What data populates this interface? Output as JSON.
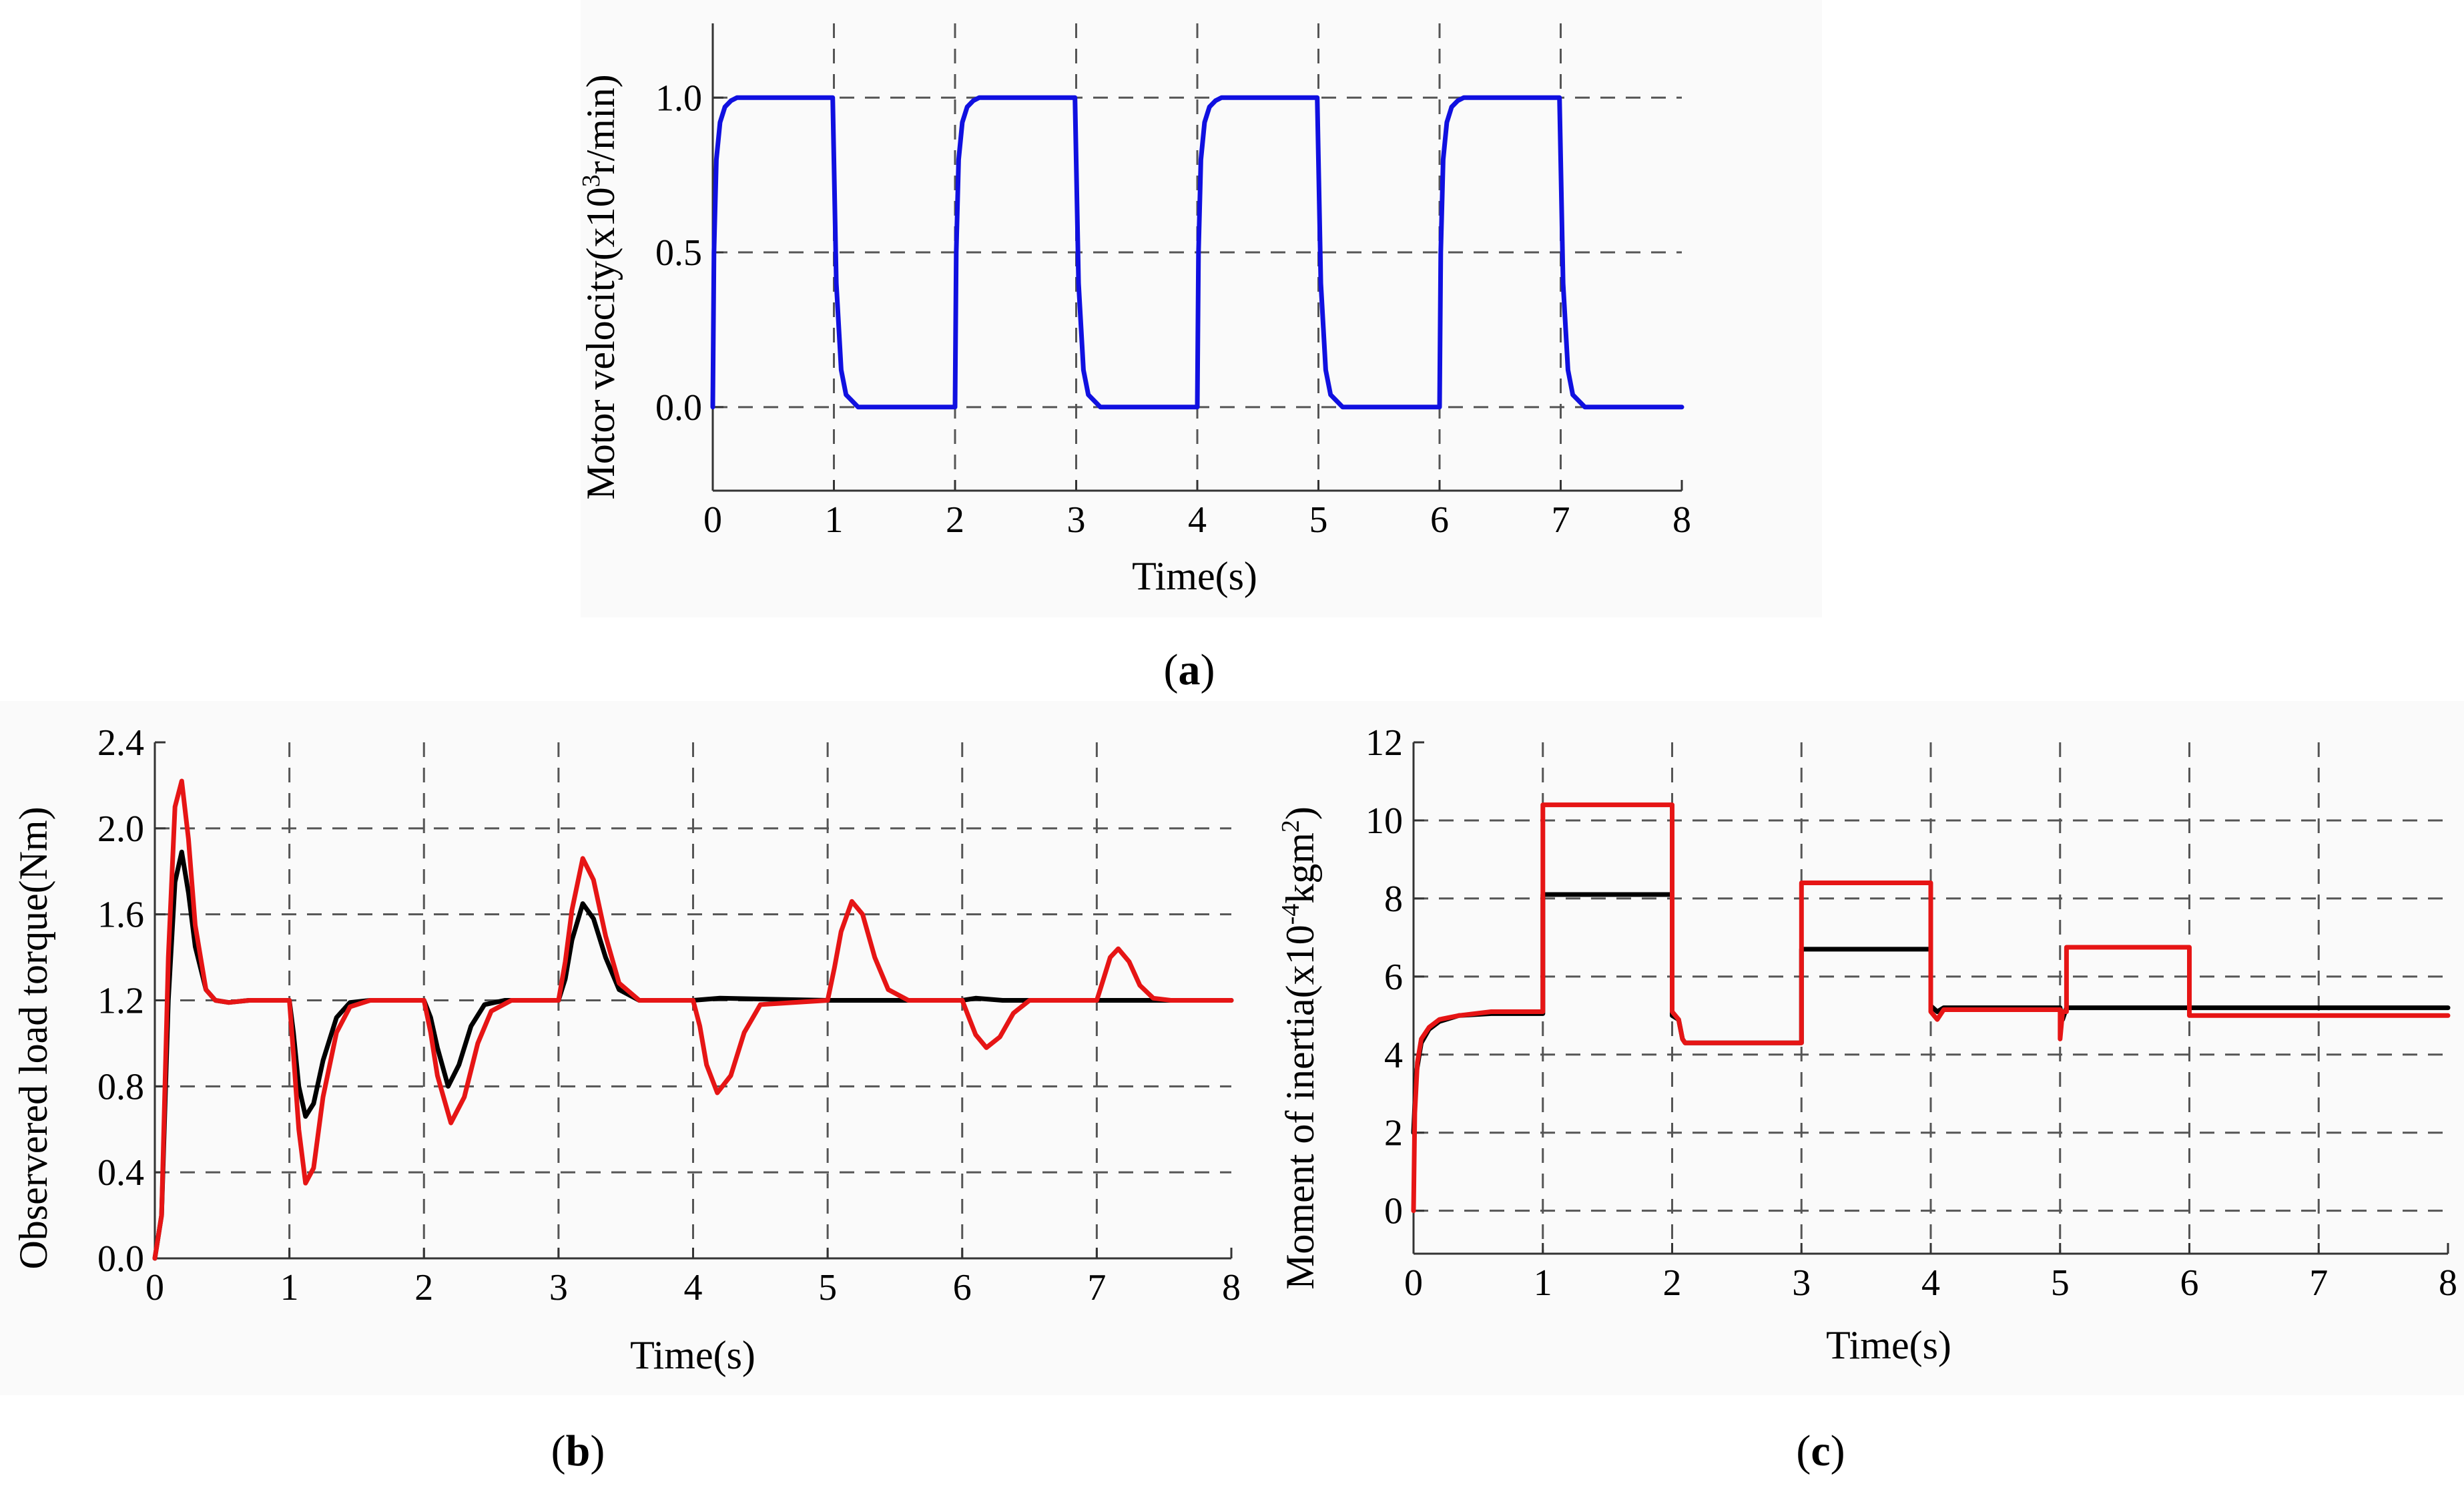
{
  "chart_data": [
    {
      "type": "line",
      "panel_label": "a",
      "xlabel": "Time(s)",
      "ylabel_pre": "Motor velocity(x10",
      "ylabel_sup": "3",
      "ylabel_post": "r/min)",
      "xlim": [
        0,
        8
      ],
      "ylim": [
        -0.27,
        1.24
      ],
      "xticks": [
        0,
        1,
        2,
        3,
        4,
        5,
        6,
        7,
        8
      ],
      "yticks": [
        0.0,
        0.5,
        1.0
      ],
      "ytick_labels": [
        "0.0",
        "0.5",
        "1.0"
      ],
      "series": [
        {
          "name": "Motor velocity",
          "color": "#1010e0",
          "x": [
            0,
            0.01,
            0.03,
            0.06,
            0.1,
            0.15,
            0.2,
            0.3,
            0.99,
            1.0,
            1.02,
            1.06,
            1.1,
            1.2,
            2.0,
            2.01,
            2.03,
            2.06,
            2.1,
            2.15,
            2.2,
            2.3,
            2.99,
            3.0,
            3.02,
            3.06,
            3.1,
            3.2,
            4.0,
            4.01,
            4.03,
            4.06,
            4.1,
            4.15,
            4.2,
            4.3,
            4.99,
            5.0,
            5.02,
            5.06,
            5.1,
            5.2,
            6.0,
            6.01,
            6.03,
            6.06,
            6.1,
            6.15,
            6.2,
            6.3,
            6.99,
            7.0,
            7.02,
            7.06,
            7.1,
            7.2,
            8.0
          ],
          "y": [
            0,
            0.5,
            0.8,
            0.92,
            0.97,
            0.99,
            1.0,
            1.0,
            1.0,
            0.8,
            0.4,
            0.12,
            0.04,
            0.0,
            0.0,
            0.5,
            0.8,
            0.92,
            0.97,
            0.99,
            1.0,
            1.0,
            1.0,
            0.8,
            0.4,
            0.12,
            0.04,
            0.0,
            0.0,
            0.5,
            0.8,
            0.92,
            0.97,
            0.99,
            1.0,
            1.0,
            1.0,
            0.8,
            0.4,
            0.12,
            0.04,
            0.0,
            0.0,
            0.5,
            0.8,
            0.92,
            0.97,
            0.99,
            1.0,
            1.0,
            1.0,
            0.8,
            0.4,
            0.12,
            0.04,
            0.0,
            0.0
          ]
        }
      ]
    },
    {
      "type": "line",
      "panel_label": "b",
      "xlabel": "Time(s)",
      "ylabel": "Observered load torque(Nm)",
      "xlim": [
        0,
        8
      ],
      "ylim": [
        0,
        2.4
      ],
      "xticks": [
        0,
        1,
        2,
        3,
        4,
        5,
        6,
        7,
        8
      ],
      "yticks": [
        0.0,
        0.4,
        0.8,
        1.2,
        1.6,
        2.0,
        2.4
      ],
      "ytick_labels": [
        "0.0",
        "0.4",
        "0.8",
        "1.2",
        "1.6",
        "2.0",
        "2.4"
      ],
      "series": [
        {
          "name": "black",
          "color": "#000000",
          "x": [
            0,
            0.05,
            0.1,
            0.15,
            0.2,
            0.25,
            0.3,
            0.38,
            0.45,
            0.55,
            0.7,
            1.0,
            1.03,
            1.07,
            1.12,
            1.18,
            1.25,
            1.35,
            1.45,
            1.6,
            2.0,
            2.05,
            2.1,
            2.18,
            2.26,
            2.35,
            2.45,
            2.6,
            3.0,
            3.05,
            3.1,
            3.18,
            3.26,
            3.35,
            3.45,
            3.6,
            3.8,
            4.0,
            4.2,
            5.0,
            6.0,
            6.1,
            6.3,
            8.0
          ],
          "y": [
            0,
            0.2,
            1.2,
            1.75,
            1.89,
            1.7,
            1.45,
            1.25,
            1.2,
            1.19,
            1.2,
            1.2,
            1.05,
            0.8,
            0.66,
            0.72,
            0.92,
            1.12,
            1.19,
            1.2,
            1.2,
            1.12,
            0.98,
            0.8,
            0.9,
            1.08,
            1.18,
            1.2,
            1.2,
            1.3,
            1.48,
            1.65,
            1.58,
            1.4,
            1.25,
            1.2,
            1.2,
            1.2,
            1.21,
            1.2,
            1.2,
            1.21,
            1.2,
            1.2
          ]
        },
        {
          "name": "red",
          "color": "#e61515",
          "x": [
            0,
            0.05,
            0.1,
            0.15,
            0.2,
            0.25,
            0.3,
            0.38,
            0.45,
            0.55,
            0.7,
            1.0,
            1.03,
            1.07,
            1.12,
            1.18,
            1.25,
            1.35,
            1.45,
            1.6,
            2.0,
            2.05,
            2.1,
            2.2,
            2.3,
            2.4,
            2.5,
            2.65,
            3.0,
            3.05,
            3.1,
            3.18,
            3.26,
            3.35,
            3.45,
            3.6,
            4.0,
            4.05,
            4.1,
            4.18,
            4.28,
            4.38,
            4.5,
            5.0,
            5.05,
            5.1,
            5.18,
            5.26,
            5.35,
            5.45,
            5.6,
            6.0,
            6.05,
            6.1,
            6.18,
            6.28,
            6.38,
            6.5,
            7.0,
            7.05,
            7.1,
            7.16,
            7.24,
            7.32,
            7.42,
            7.55,
            8.0
          ],
          "y": [
            0,
            0.2,
            1.4,
            2.1,
            2.22,
            1.95,
            1.55,
            1.25,
            1.2,
            1.19,
            1.2,
            1.2,
            0.95,
            0.6,
            0.35,
            0.42,
            0.75,
            1.05,
            1.17,
            1.2,
            1.2,
            1.05,
            0.85,
            0.63,
            0.75,
            1.0,
            1.15,
            1.2,
            1.2,
            1.38,
            1.62,
            1.86,
            1.76,
            1.5,
            1.28,
            1.2,
            1.2,
            1.08,
            0.9,
            0.77,
            0.85,
            1.05,
            1.18,
            1.2,
            1.35,
            1.52,
            1.66,
            1.6,
            1.4,
            1.25,
            1.2,
            1.2,
            1.12,
            1.04,
            0.98,
            1.03,
            1.14,
            1.2,
            1.2,
            1.3,
            1.4,
            1.44,
            1.38,
            1.27,
            1.21,
            1.2,
            1.2
          ]
        }
      ]
    },
    {
      "type": "line",
      "panel_label": "c",
      "xlabel": "Time(s)",
      "ylabel_pre": "Moment of inertia(x10",
      "ylabel_sup1": "-4",
      "ylabel_mid": "kgm",
      "ylabel_sup2": "2",
      "ylabel_post": ")",
      "xlim": [
        0,
        8
      ],
      "ylim": [
        -1.1,
        12
      ],
      "xticks": [
        0,
        1,
        2,
        3,
        4,
        5,
        6,
        7,
        8
      ],
      "yticks": [
        0,
        2,
        4,
        6,
        8,
        10,
        12
      ],
      "ytick_labels": [
        "0",
        "2",
        "4",
        "6",
        "8",
        "10",
        "12"
      ],
      "series": [
        {
          "name": "black",
          "color": "#000000",
          "x": [
            0,
            0.02,
            0.06,
            0.12,
            0.2,
            0.35,
            0.6,
            1.0,
            1.0,
            2.0,
            2.0,
            2.05,
            2.08,
            2.1,
            3.0,
            3.0,
            4.0,
            4.0,
            4.05,
            4.1,
            5.0,
            5.02,
            5.05,
            6.0,
            8.0
          ],
          "y": [
            2.0,
            3.5,
            4.3,
            4.65,
            4.85,
            5.0,
            5.05,
            5.05,
            8.1,
            8.1,
            5.0,
            4.9,
            4.4,
            4.3,
            4.3,
            6.7,
            6.7,
            5.25,
            5.1,
            5.2,
            5.2,
            4.9,
            5.2,
            5.2,
            5.2
          ]
        },
        {
          "name": "red",
          "color": "#e61515",
          "x": [
            0,
            0.01,
            0.03,
            0.06,
            0.12,
            0.2,
            0.35,
            0.6,
            1.0,
            1.0,
            2.0,
            2.0,
            2.05,
            2.08,
            2.1,
            3.0,
            3.0,
            4.0,
            4.0,
            4.05,
            4.1,
            5.0,
            5.0,
            5.02,
            5.05,
            5.05,
            6.0,
            6.0,
            8.0
          ],
          "y": [
            0,
            2.5,
            3.8,
            4.4,
            4.7,
            4.9,
            5.0,
            5.1,
            5.1,
            10.4,
            10.4,
            5.1,
            4.9,
            4.4,
            4.3,
            4.3,
            8.4,
            8.4,
            5.1,
            4.9,
            5.15,
            5.15,
            4.4,
            5.1,
            5.1,
            6.75,
            6.75,
            5.0,
            5.0
          ]
        }
      ]
    }
  ]
}
